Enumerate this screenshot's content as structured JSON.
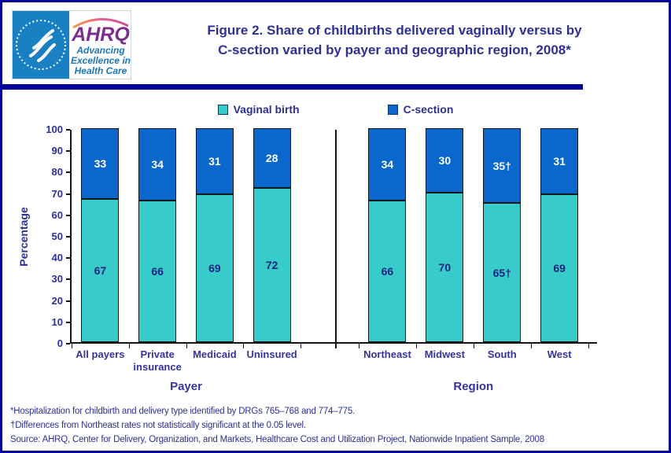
{
  "page": {
    "border_color": "#000099",
    "background": "#FFFFFF"
  },
  "header": {
    "logo": {
      "org": "AHRQ",
      "tagline_line1": "Advancing",
      "tagline_line2": "Excellence in",
      "tagline_line3": "Health Care",
      "hhs_panel_color": "#1A80C4",
      "ahrq_color": "#7B2E8E",
      "tagline_color": "#1B75BB"
    },
    "title_line1": "Figure 2. Share of childbirths delivered vaginally versus by",
    "title_line2": "C-section varied by payer and geographic region, 2008*",
    "title_color": "#2E3192"
  },
  "legend": {
    "items": [
      {
        "label": "Vaginal birth",
        "color": "#37CCCA"
      },
      {
        "label": "C-section",
        "color": "#0A67CC"
      }
    ]
  },
  "chart_data": {
    "type": "bar",
    "subtype": "stacked-100-percent",
    "title": "Share of childbirths delivered vaginally versus by C-section by payer and region, 2008",
    "xlabel_groups": [
      "Payer",
      "Region"
    ],
    "ylabel": "Percentage",
    "ylim": [
      0,
      100
    ],
    "yticks": [
      0,
      10,
      20,
      30,
      40,
      50,
      60,
      70,
      80,
      90,
      100
    ],
    "grid": false,
    "legend_position": "top-center",
    "series_names": [
      "Vaginal birth",
      "C-section"
    ],
    "colors": {
      "vaginal": "#37CCCA",
      "csection": "#0A67CC"
    },
    "value_label_colors": {
      "vaginal": "#1D2583",
      "csection": "#FFFFFF"
    },
    "groups": [
      {
        "label": "Payer",
        "categories": [
          "All payers",
          "Private insurance",
          "Medicaid",
          "Uninsured"
        ],
        "series": [
          {
            "name": "Vaginal birth",
            "values": [
              67,
              66,
              69,
              72
            ],
            "labels": [
              "67",
              "66",
              "69",
              "72"
            ]
          },
          {
            "name": "C-section",
            "values": [
              33,
              34,
              31,
              28
            ],
            "labels": [
              "33",
              "34",
              "31",
              "28"
            ]
          }
        ]
      },
      {
        "label": "Region",
        "categories": [
          "Northeast",
          "Midwest",
          "South",
          "West"
        ],
        "series": [
          {
            "name": "Vaginal birth",
            "values": [
              66,
              70,
              65,
              69
            ],
            "labels": [
              "66",
              "70",
              "65†",
              "69"
            ]
          },
          {
            "name": "C-section",
            "values": [
              34,
              30,
              35,
              31
            ],
            "labels": [
              "34",
              "30",
              "35†",
              "31"
            ]
          }
        ]
      }
    ]
  },
  "footnotes": [
    "*Hospitalization for childbirth and delivery type identified by DRGs 765–768 and 774–775.",
    "†Differences from Northeast rates not statistically significant at the 0.05 level.",
    "Source: AHRQ, Center for Delivery, Organization, and Markets, Healthcare Cost and Utilization Project, Nationwide Inpatient Sample, 2008"
  ]
}
